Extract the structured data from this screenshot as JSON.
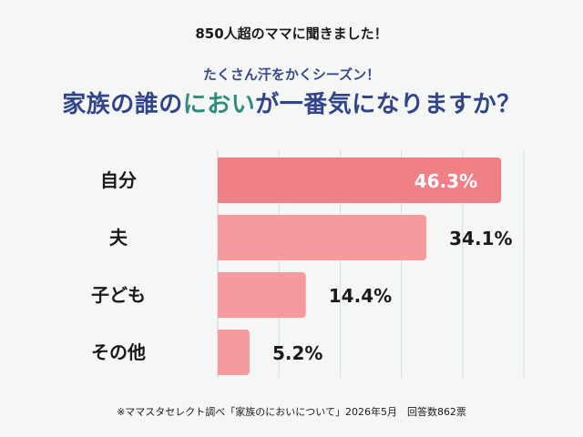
{
  "header": {
    "top_line": "850人超のママに聞きました！",
    "subtitle": "たくさん汗をかくシーズン！",
    "title_part1": "家族の誰の",
    "title_highlight": "におい",
    "title_part2": "が一番気になりますか？"
  },
  "footer": {
    "note": "※ママスタセレクト調べ「家族のにおいについて」2026年5月　回答数862票"
  },
  "colors": {
    "bar_top": "#f07f86",
    "bar": "#f79a9e",
    "grid": "#d9dedb",
    "title": "#33458a",
    "highlight": "#2f8d7a",
    "label_on_bar": "#ffffff",
    "label_off_bar": "#1a1a1a"
  },
  "chart_data": {
    "type": "bar",
    "orientation": "horizontal",
    "categories": [
      "自分",
      "夫",
      "子ども",
      "その他"
    ],
    "values": [
      46.3,
      34.1,
      14.4,
      5.2
    ],
    "value_labels": [
      "46.3%",
      "34.1%",
      "14.4%",
      "5.2%"
    ],
    "xlim": [
      0,
      50
    ],
    "grid": true
  }
}
